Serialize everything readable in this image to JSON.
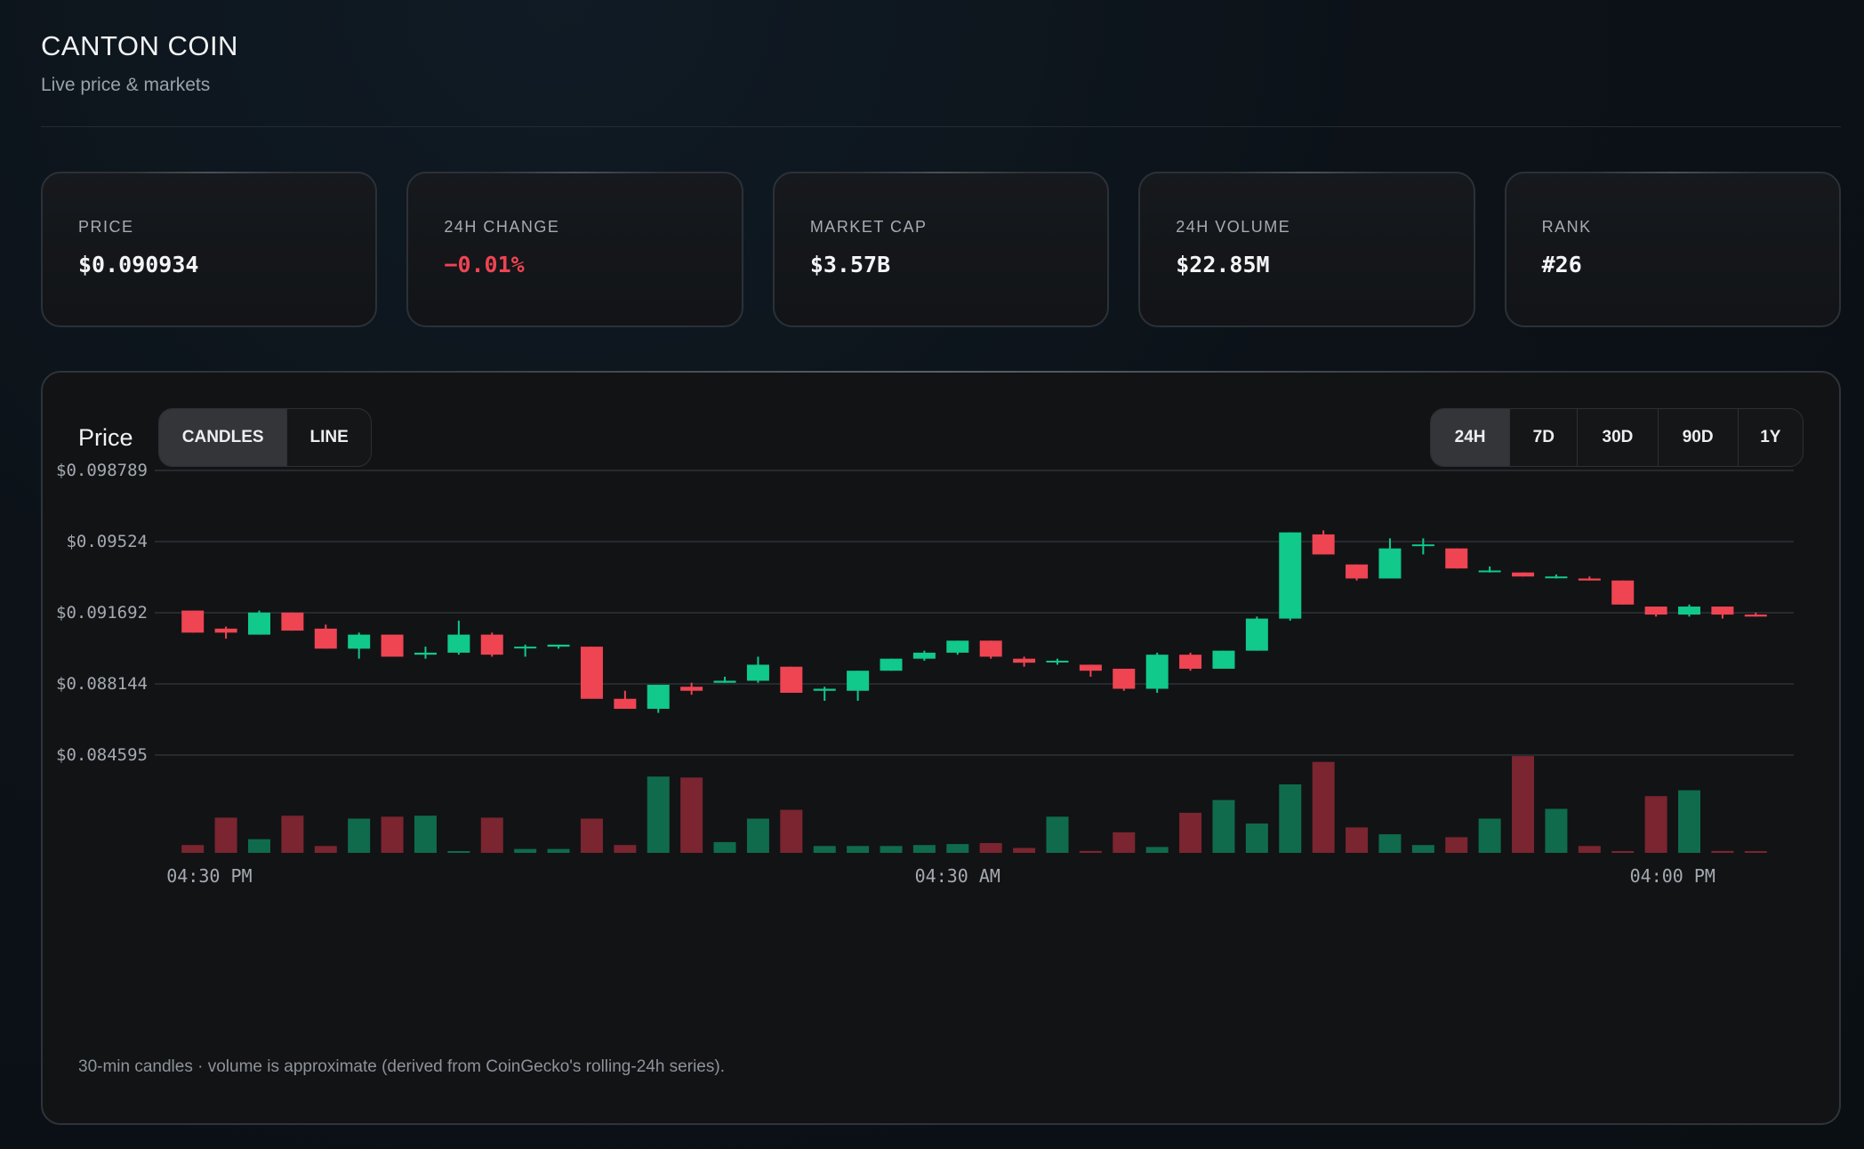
{
  "header": {
    "title": "CANTON COIN",
    "subtitle": "Live price & markets"
  },
  "stats": [
    {
      "label": "PRICE",
      "value": "$0.090934",
      "tone": "neutral"
    },
    {
      "label": "24H CHANGE",
      "value": "−0.01%",
      "tone": "negative"
    },
    {
      "label": "MARKET CAP",
      "value": "$3.57B",
      "tone": "neutral"
    },
    {
      "label": "24H VOLUME",
      "value": "$22.85M",
      "tone": "neutral"
    },
    {
      "label": "RANK",
      "value": "#26",
      "tone": "neutral"
    }
  ],
  "panel": {
    "title": "Price",
    "chart_types": [
      "CANDLES",
      "LINE"
    ],
    "active_chart_type": "CANDLES",
    "ranges": [
      "24H",
      "7D",
      "30D",
      "90D",
      "1Y"
    ],
    "active_range": "24H",
    "footnote": "30-min candles · volume is approximate (derived from CoinGecko's rolling-24h series)."
  },
  "colors": {
    "up": "#10c98a",
    "down": "#ef4452",
    "up_volume": "#0f6b4c",
    "down_volume": "#7a2530",
    "negative_text": "#ef4452"
  },
  "chart_data": {
    "type": "candlestick",
    "title": "",
    "ylim": [
      0.084595,
      0.098789
    ],
    "y_ticks": [
      "$0.098789",
      "$0.09524",
      "$0.091692",
      "$0.088144",
      "$0.084595"
    ],
    "y_tick_values": [
      0.098789,
      0.09524,
      0.091692,
      0.088144,
      0.084595
    ],
    "x_ticks": [
      "04:30 PM",
      "04:30 AM",
      "04:00 PM"
    ],
    "x_tick_index": [
      0.5,
      23,
      44.5
    ],
    "grid": true,
    "candles": [
      {
        "o": 0.0918,
        "h": 0.0918,
        "l": 0.0907,
        "c": 0.0907,
        "v": 0.08
      },
      {
        "o": 0.0909,
        "h": 0.091,
        "l": 0.0904,
        "c": 0.0907,
        "v": 0.36
      },
      {
        "o": 0.0906,
        "h": 0.0918,
        "l": 0.0906,
        "c": 0.0917,
        "v": 0.14
      },
      {
        "o": 0.0917,
        "h": 0.0917,
        "l": 0.0908,
        "c": 0.0908,
        "v": 0.38
      },
      {
        "o": 0.0909,
        "h": 0.0911,
        "l": 0.0899,
        "c": 0.0899,
        "v": 0.07
      },
      {
        "o": 0.0899,
        "h": 0.0907,
        "l": 0.0894,
        "c": 0.0906,
        "v": 0.35
      },
      {
        "o": 0.0906,
        "h": 0.0906,
        "l": 0.0895,
        "c": 0.0895,
        "v": 0.37
      },
      {
        "o": 0.0896,
        "h": 0.09,
        "l": 0.0894,
        "c": 0.0897,
        "v": 0.38
      },
      {
        "o": 0.0897,
        "h": 0.0913,
        "l": 0.0896,
        "c": 0.0906,
        "v": 0.01
      },
      {
        "o": 0.0906,
        "h": 0.0907,
        "l": 0.0895,
        "c": 0.0896,
        "v": 0.36
      },
      {
        "o": 0.09,
        "h": 0.0901,
        "l": 0.0895,
        "c": 0.09,
        "v": 0.04
      },
      {
        "o": 0.09,
        "h": 0.0901,
        "l": 0.0899,
        "c": 0.0901,
        "v": 0.04
      },
      {
        "o": 0.09,
        "h": 0.09,
        "l": 0.0874,
        "c": 0.0874,
        "v": 0.35
      },
      {
        "o": 0.0874,
        "h": 0.0878,
        "l": 0.0869,
        "c": 0.0869,
        "v": 0.08
      },
      {
        "o": 0.0869,
        "h": 0.0881,
        "l": 0.0867,
        "c": 0.0881,
        "v": 0.78
      },
      {
        "o": 0.088,
        "h": 0.0882,
        "l": 0.0876,
        "c": 0.0878,
        "v": 0.77
      },
      {
        "o": 0.0882,
        "h": 0.0885,
        "l": 0.0882,
        "c": 0.0883,
        "v": 0.11
      },
      {
        "o": 0.0883,
        "h": 0.0895,
        "l": 0.0882,
        "c": 0.0891,
        "v": 0.35
      },
      {
        "o": 0.089,
        "h": 0.089,
        "l": 0.0877,
        "c": 0.0877,
        "v": 0.44
      },
      {
        "o": 0.0878,
        "h": 0.088,
        "l": 0.0873,
        "c": 0.0879,
        "v": 0.07
      },
      {
        "o": 0.0878,
        "h": 0.0888,
        "l": 0.0873,
        "c": 0.0888,
        "v": 0.07
      },
      {
        "o": 0.0888,
        "h": 0.0894,
        "l": 0.0888,
        "c": 0.0894,
        "v": 0.07
      },
      {
        "o": 0.0894,
        "h": 0.0898,
        "l": 0.0893,
        "c": 0.0897,
        "v": 0.08
      },
      {
        "o": 0.0897,
        "h": 0.0903,
        "l": 0.0896,
        "c": 0.0903,
        "v": 0.09
      },
      {
        "o": 0.0903,
        "h": 0.0903,
        "l": 0.0894,
        "c": 0.0895,
        "v": 0.1
      },
      {
        "o": 0.0894,
        "h": 0.0895,
        "l": 0.089,
        "c": 0.0892,
        "v": 0.05
      },
      {
        "o": 0.0893,
        "h": 0.0894,
        "l": 0.0891,
        "c": 0.0893,
        "v": 0.37
      },
      {
        "o": 0.0891,
        "h": 0.0891,
        "l": 0.0885,
        "c": 0.0888,
        "v": 0.02
      },
      {
        "o": 0.0889,
        "h": 0.0889,
        "l": 0.0878,
        "c": 0.0879,
        "v": 0.21
      },
      {
        "o": 0.0879,
        "h": 0.0897,
        "l": 0.0877,
        "c": 0.0896,
        "v": 0.06
      },
      {
        "o": 0.0896,
        "h": 0.0897,
        "l": 0.0888,
        "c": 0.0889,
        "v": 0.41
      },
      {
        "o": 0.0889,
        "h": 0.0898,
        "l": 0.0889,
        "c": 0.0898,
        "v": 0.54
      },
      {
        "o": 0.0898,
        "h": 0.0915,
        "l": 0.0898,
        "c": 0.0914,
        "v": 0.3
      },
      {
        "o": 0.0914,
        "h": 0.0957,
        "l": 0.0913,
        "c": 0.0957,
        "v": 0.7
      },
      {
        "o": 0.0956,
        "h": 0.0958,
        "l": 0.0946,
        "c": 0.0946,
        "v": 0.93
      },
      {
        "o": 0.0941,
        "h": 0.0941,
        "l": 0.0933,
        "c": 0.0934,
        "v": 0.26
      },
      {
        "o": 0.0934,
        "h": 0.0954,
        "l": 0.0934,
        "c": 0.0949,
        "v": 0.19
      },
      {
        "o": 0.0951,
        "h": 0.0954,
        "l": 0.0946,
        "c": 0.0951,
        "v": 0.08
      },
      {
        "o": 0.0949,
        "h": 0.0949,
        "l": 0.0939,
        "c": 0.0939,
        "v": 0.16
      },
      {
        "o": 0.0938,
        "h": 0.094,
        "l": 0.0937,
        "c": 0.0938,
        "v": 0.35
      },
      {
        "o": 0.0937,
        "h": 0.0937,
        "l": 0.0935,
        "c": 0.0935,
        "v": 0.99
      },
      {
        "o": 0.0935,
        "h": 0.0936,
        "l": 0.0934,
        "c": 0.0935,
        "v": 0.45
      },
      {
        "o": 0.0934,
        "h": 0.0935,
        "l": 0.0933,
        "c": 0.0933,
        "v": 0.07
      },
      {
        "o": 0.0933,
        "h": 0.0933,
        "l": 0.0921,
        "c": 0.0921,
        "v": 0.0
      },
      {
        "o": 0.092,
        "h": 0.092,
        "l": 0.0915,
        "c": 0.0916,
        "v": 0.58
      },
      {
        "o": 0.0916,
        "h": 0.0921,
        "l": 0.0915,
        "c": 0.092,
        "v": 0.64
      },
      {
        "o": 0.092,
        "h": 0.092,
        "l": 0.0914,
        "c": 0.0916,
        "v": 0.02
      },
      {
        "o": 0.0916,
        "h": 0.0917,
        "l": 0.0915,
        "c": 0.0915,
        "v": 0.0
      }
    ]
  }
}
